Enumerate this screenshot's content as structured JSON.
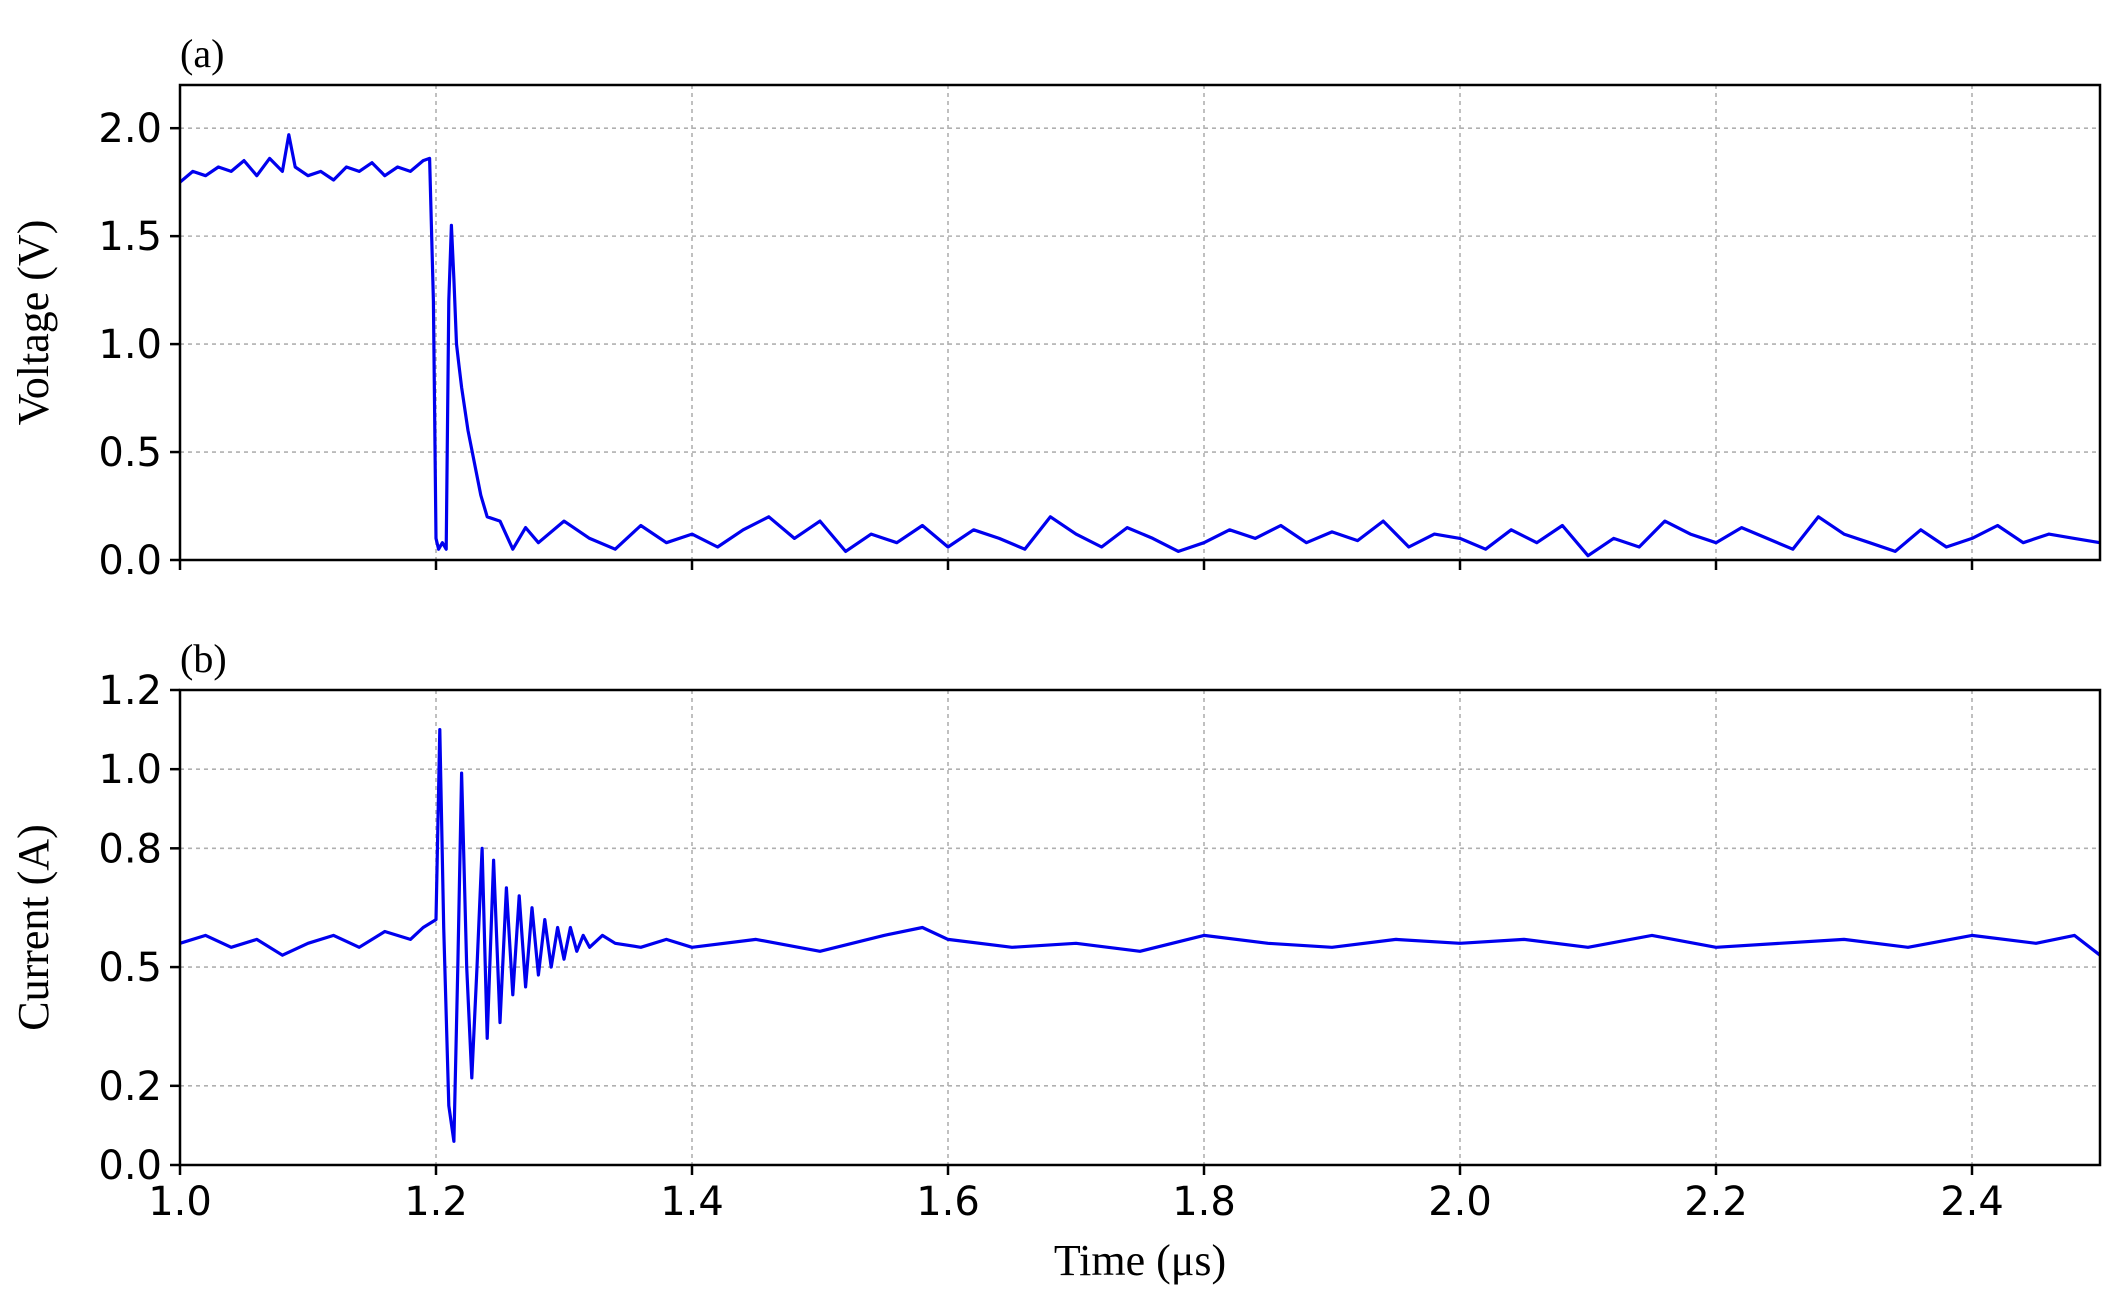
{
  "chart_data": [
    {
      "type": "line",
      "panel_label": "(a)",
      "ylabel": "Voltage (V)",
      "xlabel": "",
      "xlim": [
        1.0,
        2.5
      ],
      "ylim": [
        0.0,
        2.2
      ],
      "xticks": [
        1.0,
        1.2,
        1.4,
        1.6,
        1.8,
        2.0,
        2.2,
        2.4
      ],
      "xtick_labels_visible": false,
      "yticks": [
        0.0,
        0.5,
        1.0,
        1.5,
        2.0
      ],
      "ytick_labels": [
        "0.0",
        "0.5",
        "1.0",
        "1.5",
        "2.0"
      ],
      "grid": true,
      "color": "#0000ee",
      "series": [
        {
          "x": [
            1.0,
            1.01,
            1.02,
            1.03,
            1.04,
            1.05,
            1.06,
            1.07,
            1.08,
            1.085,
            1.09,
            1.1,
            1.11,
            1.12,
            1.13,
            1.14,
            1.15,
            1.16,
            1.17,
            1.18,
            1.19,
            1.195,
            1.198,
            1.2,
            1.202,
            1.205,
            1.208,
            1.21,
            1.212,
            1.214,
            1.216,
            1.218,
            1.22,
            1.225,
            1.23,
            1.235,
            1.24,
            1.25,
            1.26,
            1.27,
            1.28,
            1.3,
            1.32,
            1.34,
            1.36,
            1.38,
            1.4,
            1.42,
            1.44,
            1.46,
            1.48,
            1.5,
            1.52,
            1.54,
            1.56,
            1.58,
            1.6,
            1.62,
            1.64,
            1.66,
            1.68,
            1.7,
            1.72,
            1.74,
            1.76,
            1.78,
            1.8,
            1.82,
            1.84,
            1.86,
            1.88,
            1.9,
            1.92,
            1.94,
            1.96,
            1.98,
            2.0,
            2.02,
            2.04,
            2.06,
            2.08,
            2.1,
            2.12,
            2.14,
            2.16,
            2.18,
            2.2,
            2.22,
            2.24,
            2.26,
            2.28,
            2.3,
            2.32,
            2.34,
            2.36,
            2.38,
            2.4,
            2.42,
            2.44,
            2.46,
            2.48,
            2.5
          ],
          "y": [
            1.75,
            1.8,
            1.78,
            1.82,
            1.8,
            1.85,
            1.78,
            1.86,
            1.8,
            1.97,
            1.82,
            1.78,
            1.8,
            1.76,
            1.82,
            1.8,
            1.84,
            1.78,
            1.82,
            1.8,
            1.85,
            1.86,
            1.2,
            0.1,
            0.05,
            0.08,
            0.05,
            1.2,
            1.55,
            1.3,
            1.0,
            0.9,
            0.8,
            0.6,
            0.45,
            0.3,
            0.2,
            0.18,
            0.05,
            0.15,
            0.08,
            0.18,
            0.1,
            0.05,
            0.16,
            0.08,
            0.12,
            0.06,
            0.14,
            0.2,
            0.1,
            0.18,
            0.04,
            0.12,
            0.08,
            0.16,
            0.06,
            0.14,
            0.1,
            0.05,
            0.2,
            0.12,
            0.06,
            0.15,
            0.1,
            0.04,
            0.08,
            0.14,
            0.1,
            0.16,
            0.08,
            0.13,
            0.09,
            0.18,
            0.06,
            0.12,
            0.1,
            0.05,
            0.14,
            0.08,
            0.16,
            0.02,
            0.1,
            0.06,
            0.18,
            0.12,
            0.08,
            0.15,
            0.1,
            0.05,
            0.2,
            0.12,
            0.08,
            0.04,
            0.14,
            0.06,
            0.1,
            0.16,
            0.08,
            0.12,
            0.1,
            0.08
          ]
        }
      ]
    },
    {
      "type": "line",
      "panel_label": "(b)",
      "ylabel": "Current (A)",
      "xlabel": "Time (μs)",
      "xlim": [
        1.0,
        2.5
      ],
      "ylim": [
        0.0,
        1.2
      ],
      "xticks": [
        1.0,
        1.2,
        1.4,
        1.6,
        1.8,
        2.0,
        2.2,
        2.4
      ],
      "xtick_labels": [
        "1.0",
        "1.2",
        "1.4",
        "1.6",
        "1.8",
        "2.0",
        "2.2",
        "2.4"
      ],
      "yticks": [
        0.0,
        0.2,
        0.5,
        0.8,
        1.0,
        1.2
      ],
      "ytick_labels": [
        "0.0",
        "0.2",
        "0.5",
        "0.8",
        "1.0",
        "1.2"
      ],
      "grid": true,
      "color": "#0000ee",
      "series": [
        {
          "x": [
            1.0,
            1.02,
            1.04,
            1.06,
            1.08,
            1.1,
            1.12,
            1.14,
            1.16,
            1.18,
            1.19,
            1.2,
            1.203,
            1.206,
            1.21,
            1.214,
            1.217,
            1.22,
            1.224,
            1.228,
            1.232,
            1.236,
            1.24,
            1.245,
            1.25,
            1.255,
            1.26,
            1.265,
            1.27,
            1.275,
            1.28,
            1.285,
            1.29,
            1.295,
            1.3,
            1.305,
            1.31,
            1.315,
            1.32,
            1.33,
            1.34,
            1.36,
            1.38,
            1.4,
            1.45,
            1.5,
            1.55,
            1.58,
            1.6,
            1.65,
            1.7,
            1.75,
            1.8,
            1.85,
            1.9,
            1.95,
            2.0,
            2.05,
            2.1,
            2.15,
            2.2,
            2.25,
            2.3,
            2.35,
            2.4,
            2.45,
            2.48,
            2.5
          ],
          "y": [
            0.56,
            0.58,
            0.55,
            0.57,
            0.53,
            0.56,
            0.58,
            0.55,
            0.59,
            0.57,
            0.6,
            0.62,
            1.1,
            0.6,
            0.15,
            0.06,
            0.5,
            0.99,
            0.5,
            0.22,
            0.5,
            0.8,
            0.32,
            0.77,
            0.36,
            0.7,
            0.43,
            0.68,
            0.45,
            0.65,
            0.48,
            0.62,
            0.5,
            0.6,
            0.52,
            0.6,
            0.54,
            0.58,
            0.55,
            0.58,
            0.56,
            0.55,
            0.57,
            0.55,
            0.57,
            0.54,
            0.58,
            0.6,
            0.57,
            0.55,
            0.56,
            0.54,
            0.58,
            0.56,
            0.55,
            0.57,
            0.56,
            0.57,
            0.55,
            0.58,
            0.55,
            0.56,
            0.57,
            0.55,
            0.58,
            0.56,
            0.58,
            0.53
          ]
        }
      ]
    }
  ]
}
